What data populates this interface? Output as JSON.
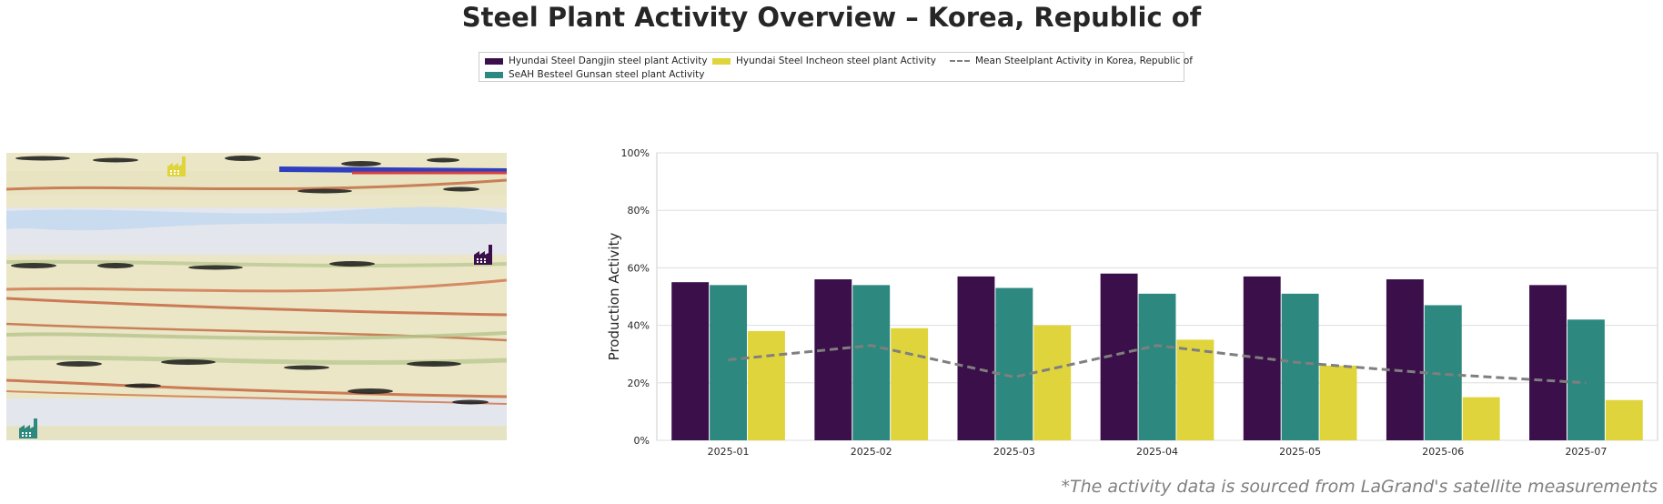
{
  "title": "Steel Plant Activity Overview – Korea, Republic of",
  "legend": {
    "items": [
      {
        "label": "Hyundai Steel Dangjin steel plant Activity",
        "color": "#3b0f4a",
        "kind": "bar"
      },
      {
        "label": "SeAH Besteel Gunsan steel plant Activity",
        "color": "#2d8880",
        "kind": "bar"
      },
      {
        "label": "Hyundai Steel Incheon steel plant Activity",
        "color": "#e0d43c",
        "kind": "bar"
      },
      {
        "label": "Mean Steelplant Activity in Korea, Republic of",
        "color": "#7f7f7f",
        "kind": "dashed-line"
      }
    ]
  },
  "map": {
    "icons": [
      {
        "name": "plant-icon-incheon",
        "color": "#e0d43c"
      },
      {
        "name": "plant-icon-dangjin",
        "color": "#3b0f4a"
      },
      {
        "name": "plant-icon-gunsan",
        "color": "#2d8880"
      }
    ]
  },
  "chart_data": {
    "type": "bar",
    "categories": [
      "2025-01",
      "2025-02",
      "2025-03",
      "2025-04",
      "2025-05",
      "2025-06",
      "2025-07"
    ],
    "series": [
      {
        "name": "Hyundai Steel Dangjin steel plant Activity",
        "color": "#3b0f4a",
        "values": [
          55,
          56,
          57,
          58,
          57,
          56,
          54
        ]
      },
      {
        "name": "SeAH Besteel Gunsan steel plant Activity",
        "color": "#2d8880",
        "values": [
          54,
          54,
          53,
          51,
          51,
          47,
          42
        ]
      },
      {
        "name": "Hyundai Steel Incheon steel plant Activity",
        "color": "#e0d43c",
        "values": [
          38,
          39,
          40,
          35,
          26,
          15,
          14
        ]
      }
    ],
    "line_series": {
      "name": "Mean Steelplant Activity in Korea, Republic of",
      "color": "#7f7f7f",
      "style": "dashed",
      "values": [
        28,
        33,
        22,
        33,
        27,
        23,
        20
      ]
    },
    "ylabel": "Production Activity",
    "xlabel": "",
    "ylim": [
      0,
      100
    ],
    "yticks": [
      "0%",
      "20%",
      "40%",
      "60%",
      "80%",
      "100%"
    ],
    "grid": true
  },
  "footnote": "*The activity data is sourced from LaGrand's satellite measurements"
}
